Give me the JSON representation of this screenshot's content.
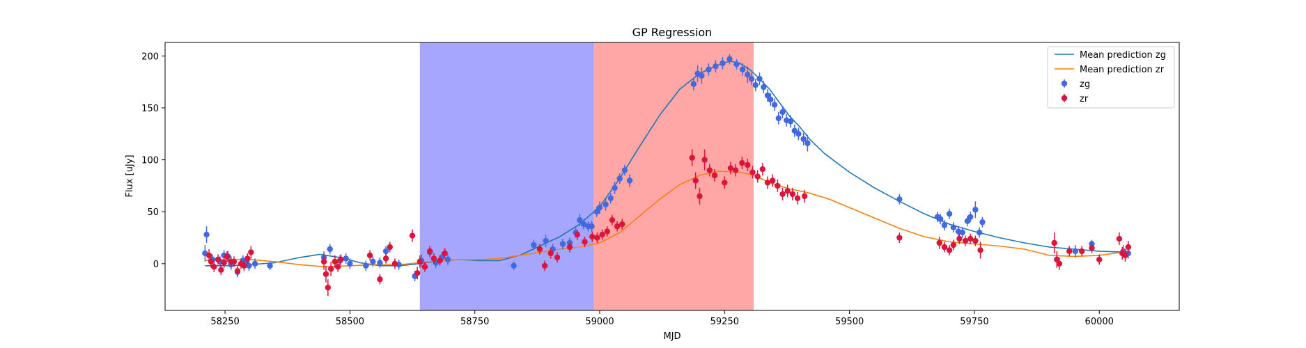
{
  "chart_data": {
    "type": "scatter",
    "title": "GP Regression",
    "xlabel": "MJD",
    "ylabel": "Flux [uJy]",
    "xlim": [
      58130,
      60160
    ],
    "ylim": [
      -45,
      213
    ],
    "xticks": [
      58250,
      58500,
      58750,
      59000,
      59250,
      59500,
      59750,
      60000
    ],
    "yticks": [
      0,
      50,
      100,
      150,
      200
    ],
    "grid": false,
    "legend_position": "top-right",
    "legend": [
      {
        "label": "Mean prediction zg",
        "kind": "line",
        "color": "#1f77b4"
      },
      {
        "label": "Mean prediction zr",
        "kind": "line",
        "color": "#ff7f0e"
      },
      {
        "label": "zg",
        "kind": "errorbar",
        "color": "#4169e1"
      },
      {
        "label": "zr",
        "kind": "errorbar",
        "color": "#dc143c"
      }
    ],
    "shaded_regions": [
      {
        "x0": 58640,
        "x1": 58988,
        "color": "#0000ff",
        "opacity": 0.35
      },
      {
        "x0": 58988,
        "x1": 59290,
        "color": "#ff0000",
        "opacity": 0.35
      },
      {
        "x0": 59290,
        "x1": 59308,
        "color": "#ff0000",
        "opacity": 0.35
      }
    ],
    "series": [
      {
        "name": "Mean prediction zg",
        "kind": "line",
        "color": "#1f77b4",
        "x": [
          58210,
          58250,
          58300,
          58350,
          58400,
          58440,
          58480,
          58520,
          58560,
          58600,
          58640,
          58680,
          58720,
          58760,
          58800,
          58840,
          58880,
          58920,
          58960,
          59000,
          59040,
          59080,
          59120,
          59160,
          59200,
          59230,
          59260,
          59280,
          59300,
          59320,
          59340,
          59360,
          59380,
          59400,
          59420,
          59450,
          59500,
          59550,
          59600,
          59650,
          59700,
          59750,
          59800,
          59850,
          59900,
          59950,
          60000,
          60060
        ],
        "y": [
          -2,
          -2,
          -1,
          1,
          6,
          9,
          6,
          1,
          -2,
          -2,
          0,
          3,
          4,
          3,
          3,
          8,
          17,
          26,
          38,
          55,
          82,
          113,
          143,
          168,
          183,
          190,
          195,
          193,
          187,
          178,
          168,
          155,
          142,
          132,
          120,
          106,
          88,
          73,
          60,
          48,
          38,
          31,
          25,
          20,
          16,
          14,
          12,
          11
        ]
      },
      {
        "name": "Mean prediction zr",
        "kind": "line",
        "color": "#ff7f0e",
        "x": [
          58210,
          58250,
          58300,
          58350,
          58400,
          58450,
          58500,
          58550,
          58600,
          58640,
          58680,
          58720,
          58760,
          58800,
          58840,
          58880,
          58920,
          58960,
          59000,
          59040,
          59080,
          59120,
          59160,
          59200,
          59240,
          59280,
          59310,
          59340,
          59380,
          59420,
          59460,
          59500,
          59550,
          59600,
          59650,
          59700,
          59750,
          59800,
          59850,
          59900,
          59950,
          60000,
          60060
        ],
        "y": [
          3,
          4,
          4,
          2,
          -1,
          -3,
          -2,
          -1,
          -1,
          1,
          3,
          4,
          4,
          5,
          8,
          11,
          14,
          16,
          20,
          30,
          46,
          62,
          76,
          85,
          89,
          88,
          85,
          78,
          72,
          68,
          62,
          54,
          44,
          34,
          26,
          21,
          19,
          17,
          14,
          8,
          7,
          8,
          12
        ]
      },
      {
        "name": "zg",
        "kind": "errorbar",
        "color": "#4169e1",
        "x": [
          58210,
          58213,
          58225,
          58240,
          58248,
          58256,
          58262,
          58275,
          58286,
          58292,
          58298,
          58310,
          58340,
          58448,
          58460,
          58480,
          58492,
          58500,
          58532,
          58546,
          58560,
          58572,
          58598,
          58630,
          58643,
          58660,
          58672,
          58684,
          58696,
          58828,
          58868,
          58892,
          58906,
          58926,
          58940,
          58952,
          58960,
          58968,
          58977,
          58984,
          58994,
          59000,
          59012,
          59022,
          59030,
          59040,
          59050,
          59060,
          59188,
          59196,
          59204,
          59218,
          59232,
          59246,
          59260,
          59274,
          59286,
          59296,
          59304,
          59312,
          59320,
          59328,
          59336,
          59342,
          59350,
          59358,
          59366,
          59374,
          59382,
          59390,
          59398,
          59408,
          59416,
          59600,
          59676,
          59682,
          59690,
          59700,
          59708,
          59718,
          59726,
          59736,
          59742,
          59752,
          59760,
          59766,
          59952,
          59985,
          60048,
          60058
        ],
        "y": [
          10,
          28,
          4,
          2,
          8,
          7,
          -1,
          -8,
          3,
          1,
          -2,
          0,
          -2,
          6,
          14,
          3,
          5,
          0,
          -2,
          2,
          1,
          12,
          -1,
          -12,
          3,
          11,
          1,
          6,
          4,
          -2,
          18,
          22,
          14,
          19,
          20,
          30,
          42,
          38,
          36,
          36,
          50,
          54,
          57,
          63,
          73,
          82,
          90,
          80,
          173,
          183,
          181,
          187,
          190,
          193,
          197,
          192,
          187,
          182,
          178,
          172,
          178,
          170,
          162,
          158,
          153,
          140,
          146,
          138,
          137,
          128,
          125,
          120,
          116,
          62,
          45,
          43,
          37,
          48,
          35,
          31,
          30,
          41,
          45,
          52,
          30,
          40,
          12,
          19,
          12,
          10
        ],
        "err": [
          8,
          8,
          5,
          5,
          5,
          5,
          5,
          5,
          5,
          5,
          5,
          5,
          4,
          6,
          5,
          5,
          5,
          5,
          5,
          5,
          5,
          5,
          5,
          5,
          6,
          5,
          5,
          5,
          5,
          4,
          5,
          6,
          5,
          5,
          5,
          5,
          6,
          5,
          5,
          5,
          5,
          6,
          6,
          5,
          6,
          5,
          5,
          6,
          6,
          8,
          8,
          6,
          6,
          6,
          5,
          5,
          6,
          8,
          6,
          6,
          6,
          6,
          6,
          6,
          6,
          6,
          6,
          6,
          6,
          6,
          6,
          6,
          8,
          5,
          5,
          5,
          5,
          5,
          5,
          5,
          5,
          5,
          5,
          8,
          5,
          5,
          6,
          4,
          6,
          5
        ]
      },
      {
        "name": "zr",
        "kind": "errorbar",
        "color": "#dc143c",
        "x": [
          58218,
          58222,
          58228,
          58236,
          58242,
          58248,
          58254,
          58262,
          58268,
          58275,
          58282,
          58288,
          58295,
          58302,
          58448,
          58452,
          58456,
          58462,
          58470,
          58476,
          58482,
          58540,
          58560,
          58572,
          58580,
          58590,
          58625,
          58635,
          58640,
          58650,
          58660,
          58668,
          58680,
          58690,
          58880,
          58890,
          58902,
          58915,
          58940,
          58955,
          58970,
          58985,
          58995,
          59005,
          59015,
          59025,
          59035,
          59045,
          59185,
          59192,
          59200,
          59210,
          59220,
          59230,
          59250,
          59262,
          59272,
          59285,
          59296,
          59306,
          59316,
          59326,
          59336,
          59346,
          59356,
          59366,
          59376,
          59386,
          59396,
          59410,
          59600,
          59680,
          59690,
          59700,
          59708,
          59720,
          59732,
          59742,
          59752,
          59762,
          59910,
          59915,
          59920,
          59940,
          59965,
          59985,
          60000,
          60040,
          60046,
          60052,
          60058
        ],
        "y": [
          8,
          2,
          -3,
          4,
          -6,
          1,
          7,
          2,
          2,
          -7,
          0,
          -2,
          5,
          11,
          2,
          -10,
          -23,
          -5,
          2,
          -3,
          4,
          8,
          -15,
          5,
          16,
          0,
          27,
          -9,
          2,
          -3,
          12,
          5,
          3,
          10,
          14,
          -2,
          10,
          6,
          16,
          28,
          21,
          26,
          25,
          28,
          31,
          42,
          36,
          38,
          102,
          80,
          65,
          100,
          90,
          85,
          78,
          92,
          90,
          97,
          95,
          88,
          84,
          91,
          78,
          80,
          75,
          67,
          70,
          67,
          63,
          65,
          25,
          20,
          16,
          13,
          18,
          24,
          22,
          24,
          22,
          13,
          20,
          4,
          0,
          12,
          12,
          15,
          4,
          24,
          10,
          8,
          16
        ],
        "err": [
          6,
          6,
          5,
          5,
          5,
          5,
          5,
          5,
          5,
          5,
          5,
          5,
          5,
          6,
          8,
          8,
          8,
          7,
          6,
          5,
          5,
          5,
          5,
          5,
          5,
          5,
          6,
          6,
          6,
          5,
          5,
          5,
          5,
          5,
          5,
          5,
          5,
          5,
          5,
          5,
          5,
          5,
          5,
          5,
          5,
          5,
          5,
          5,
          8,
          8,
          8,
          10,
          6,
          6,
          6,
          6,
          6,
          6,
          6,
          6,
          6,
          6,
          6,
          6,
          6,
          6,
          6,
          6,
          6,
          6,
          5,
          6,
          5,
          5,
          5,
          5,
          5,
          5,
          5,
          8,
          10,
          8,
          6,
          5,
          5,
          5,
          5,
          6,
          6,
          6,
          6
        ]
      }
    ]
  }
}
